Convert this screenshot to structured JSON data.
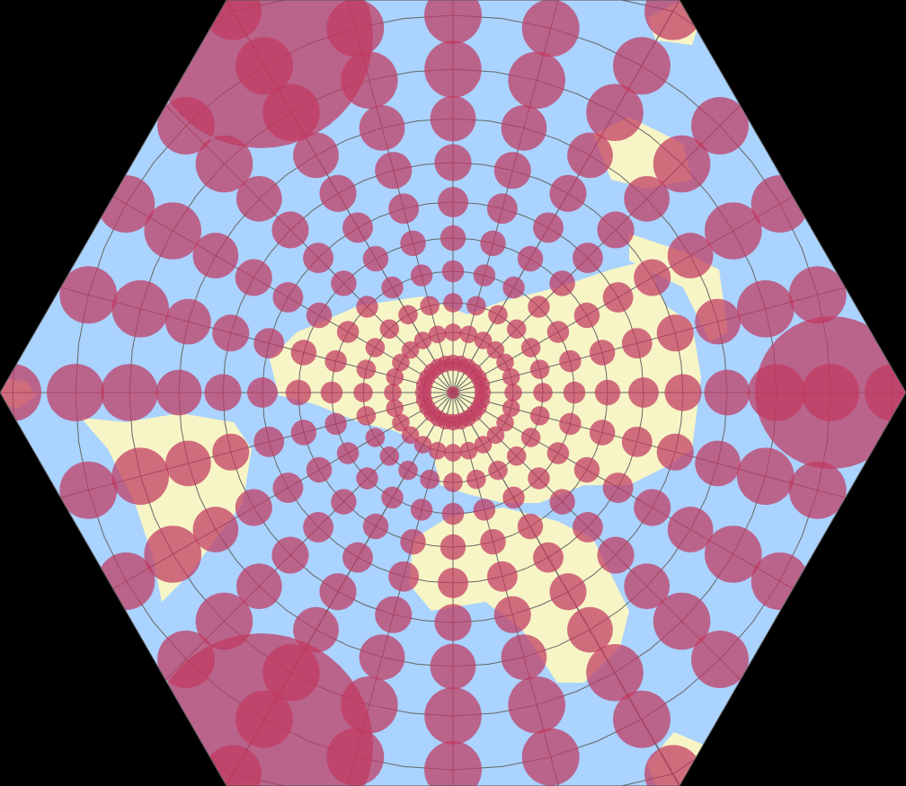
{
  "map": {
    "colors": {
      "background": "#000000",
      "ocean": "#aad3ff",
      "land": "#f7f5c6",
      "indicatrix": "#c0395f",
      "graticule": "#666666"
    },
    "graticule": {
      "meridian_step_deg": 15
    }
  }
}
